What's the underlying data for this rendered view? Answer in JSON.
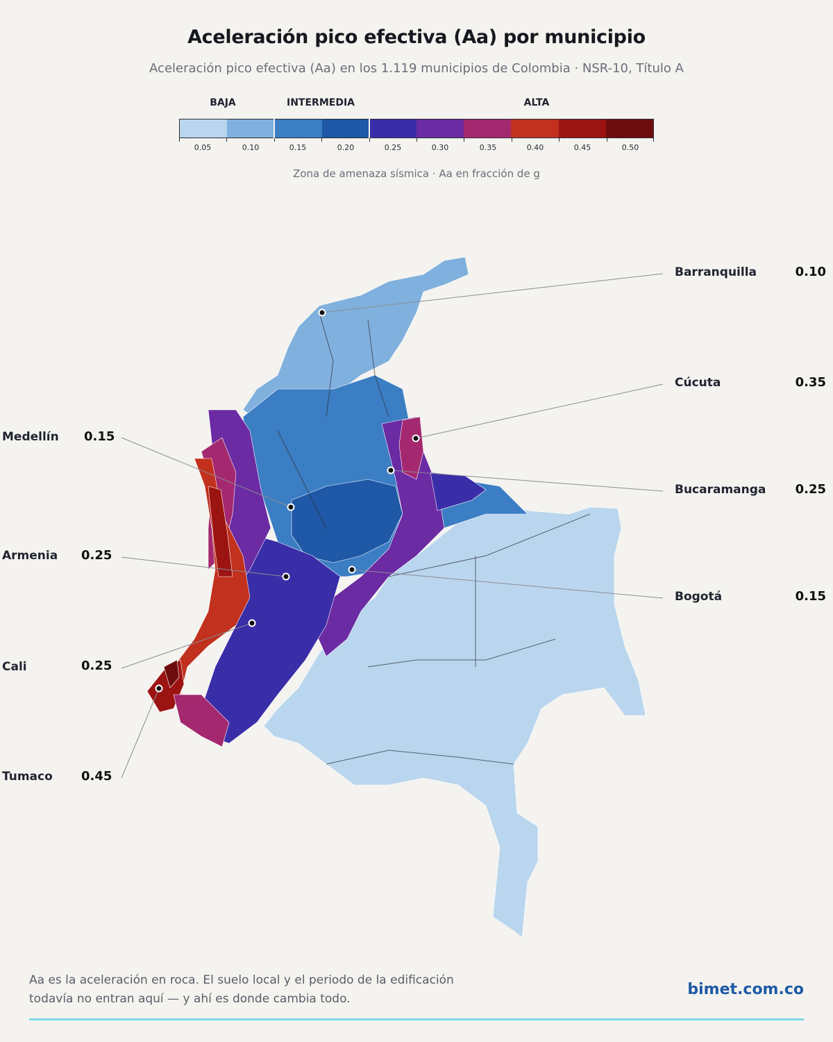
{
  "header": {
    "title": "Aceleración pico efectiva (Aa) por municipio",
    "subtitle": "Aceleración pico efectiva (Aa) en los 1.119 municipios de Colombia · NSR-10, Título A"
  },
  "legend": {
    "groups": [
      {
        "label": "BAJA",
        "from": 0,
        "to": 2
      },
      {
        "label": "INTERMEDIA",
        "from": 2,
        "to": 4
      },
      {
        "label": "ALTA",
        "from": 4,
        "to": 10
      }
    ],
    "bins": [
      {
        "label": "0.05",
        "color": "#bad6ee"
      },
      {
        "label": "0.10",
        "color": "#80b0dd"
      },
      {
        "label": "0.15",
        "color": "#3c7ec4"
      },
      {
        "label": "0.20",
        "color": "#1e58a6"
      },
      {
        "label": "0.25",
        "color": "#3a2ea8"
      },
      {
        "label": "0.30",
        "color": "#6b2ba3"
      },
      {
        "label": "0.35",
        "color": "#a4286f"
      },
      {
        "label": "0.40",
        "color": "#c2301e"
      },
      {
        "label": "0.45",
        "color": "#9c1412"
      },
      {
        "label": "0.50",
        "color": "#6e0d0d"
      }
    ],
    "note": "Zona de amenaza sísmica  ·  Aa en fracción de g"
  },
  "callouts": [
    {
      "city": "Barranquilla",
      "value": "0.10"
    },
    {
      "city": "Cúcuta",
      "value": "0.35"
    },
    {
      "city": "Bucaramanga",
      "value": "0.25"
    },
    {
      "city": "Bogotá",
      "value": "0.15"
    },
    {
      "city": "Medellín",
      "value": "0.15"
    },
    {
      "city": "Armenia",
      "value": "0.25"
    },
    {
      "city": "Cali",
      "value": "0.25"
    },
    {
      "city": "Tumaco",
      "value": "0.45"
    }
  ],
  "footer": {
    "note": "Aa es la aceleración en roca. El suelo local y el periodo de la edificación todavía no entran aquí — y ahí es donde cambia todo.",
    "brand": "bimet.com.co"
  }
}
